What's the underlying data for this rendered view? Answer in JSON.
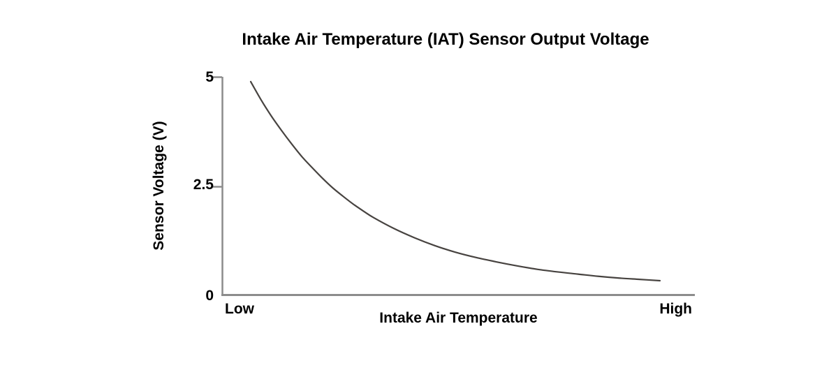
{
  "chart_data": {
    "type": "line",
    "title": "Intake Air Temperature (IAT) Sensor Output Voltage",
    "xlabel": "Intake Air Temperature",
    "ylabel": "Sensor Voltage (V)",
    "x_end_labels": {
      "left": "Low",
      "right": "High"
    },
    "x_axis_note": "unlabeled qualitative axis from Low to High temperature",
    "ylim": [
      0,
      5
    ],
    "y_ticks": [
      {
        "value": 5,
        "label": "5"
      },
      {
        "value": 2.5,
        "label": "2.5"
      },
      {
        "value": 0,
        "label": "0"
      }
    ],
    "grid": false,
    "legend": null,
    "series": [
      {
        "name": "IAT sensor output voltage",
        "shape": "exponential-decay",
        "x_normalized_temperature": [
          0,
          0.025,
          0.05,
          0.075,
          0.1,
          0.125,
          0.15,
          0.175,
          0.2,
          0.225,
          0.25,
          0.275,
          0.3,
          0.35,
          0.4,
          0.45,
          0.5,
          0.55,
          0.6,
          0.65,
          0.7,
          0.75,
          0.8,
          0.85,
          0.9,
          0.95,
          1.0
        ],
        "voltage_v": [
          4.89,
          4.48,
          4.11,
          3.78,
          3.47,
          3.18,
          2.93,
          2.69,
          2.47,
          2.28,
          2.1,
          1.94,
          1.79,
          1.54,
          1.33,
          1.15,
          1.0,
          0.88,
          0.78,
          0.69,
          0.61,
          0.55,
          0.5,
          0.45,
          0.41,
          0.38,
          0.35
        ]
      }
    ],
    "colors": {
      "curve": "#474340",
      "axis": "#8c8c8c",
      "text": "#000000",
      "background": "#ffffff"
    }
  }
}
